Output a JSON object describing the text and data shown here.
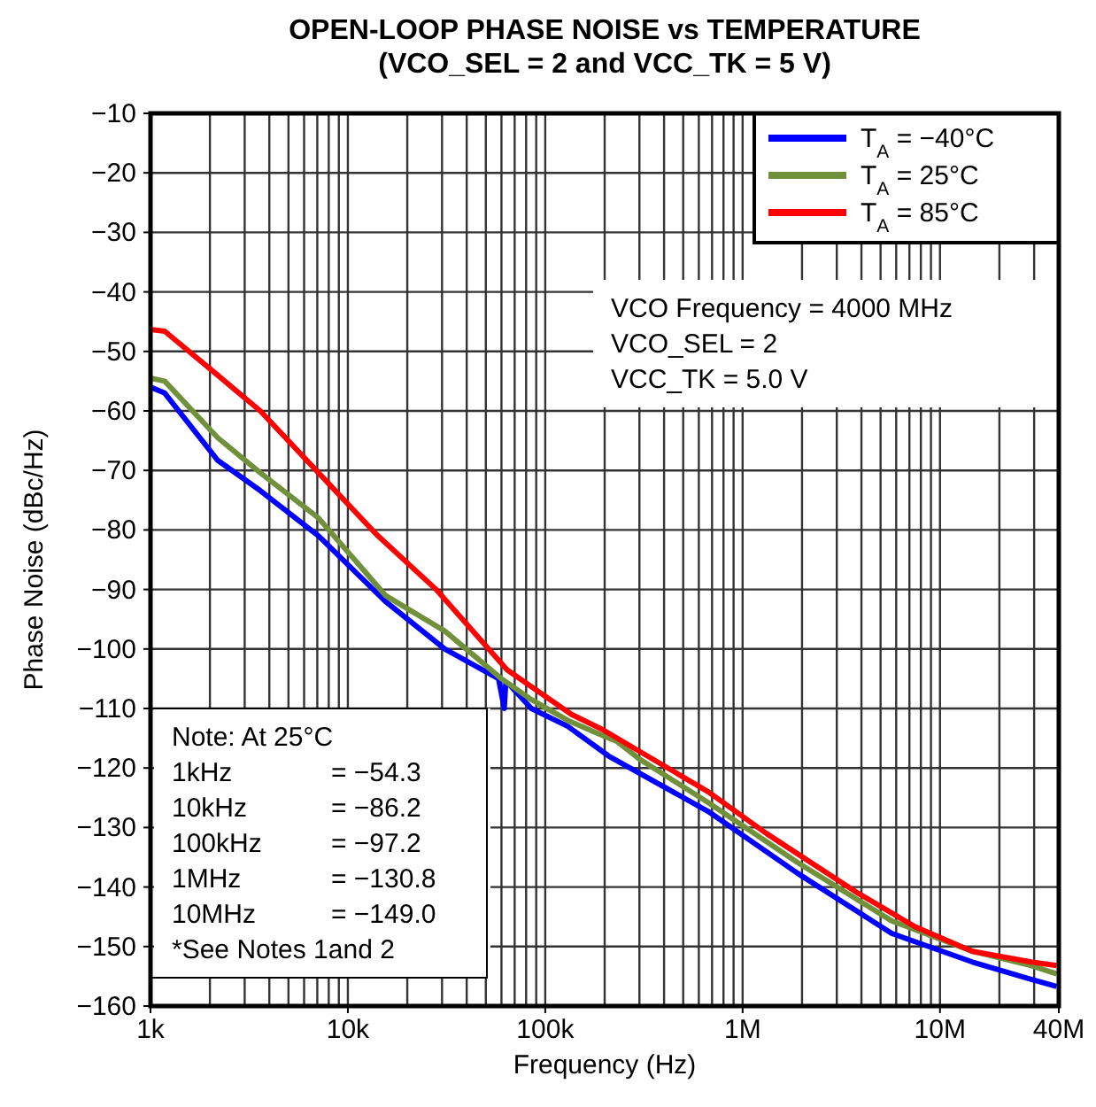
{
  "chart_data": {
    "type": "line",
    "title": "OPEN-LOOP PHASE NOISE vs TEMPERATURE",
    "subtitle": "(VCO_SEL = 2 and VCC_TK = 5 V)",
    "xlabel": "Frequency (Hz)",
    "ylabel": "Phase Noise (dBc/Hz)",
    "log": "x",
    "grid": true,
    "legend": "top right",
    "line_style": "solid",
    "marker": "none",
    "xlim": [
      1000,
      40000000
    ],
    "xticks": [
      {
        "value": 1000,
        "label": "1k"
      },
      {
        "value": 10000,
        "label": "10k"
      },
      {
        "value": 100000,
        "label": "100k"
      },
      {
        "value": 1000000,
        "label": "1M"
      },
      {
        "value": 10000000,
        "label": "10M"
      },
      {
        "value": 40000000,
        "label": "40M"
      }
    ],
    "ylim": [
      -160,
      -10
    ],
    "yticks": [
      -10,
      -20,
      -30,
      -40,
      -50,
      -60,
      -70,
      -80,
      -90,
      -100,
      -110,
      -120,
      -130,
      -140,
      -150,
      -160
    ],
    "series": [
      {
        "name": "T$_{A}$ = −40°C",
        "color": "#0000ff",
        "x": [
          1000,
          1180,
          2190,
          3600,
          7100,
          15500,
          31000,
          58000,
          62000,
          63000,
          66000,
          85000,
          130000,
          210000,
          670000,
          1900000,
          5700000,
          14600000,
          29000000,
          39000000
        ],
        "values": [
          -56,
          -57,
          -68.3,
          -73.4,
          -81,
          -92,
          -100,
          -105,
          -110,
          -106,
          -106,
          -110,
          -113,
          -118,
          -127.3,
          -137.7,
          -147.8,
          -152.6,
          -155.5,
          -156.7
        ]
      },
      {
        "name": "T$_{A}$ = 25°C",
        "color": "#70903c",
        "x": [
          1000,
          1180,
          2190,
          3600,
          7100,
          15500,
          31000,
          60000,
          85000,
          130000,
          194000,
          230000,
          300000,
          670000,
          1900000,
          5700000,
          14600000,
          29000000,
          39000000
        ],
        "values": [
          -54.5,
          -55,
          -64.5,
          -70.4,
          -78,
          -91,
          -97,
          -105,
          -108.5,
          -112,
          -114.5,
          -115.5,
          -118.5,
          -125.8,
          -135.9,
          -145.7,
          -150.8,
          -153.2,
          -154.6
        ]
      },
      {
        "name": "T$_{A}$ = 85°C",
        "color": "#ff0000",
        "x": [
          1000,
          1180,
          2190,
          3600,
          7100,
          14000,
          28000,
          64000,
          136000,
          194000,
          670000,
          1320000,
          3700000,
          7400000,
          14600000,
          29000000,
          39000000
        ],
        "values": [
          -46.3,
          -46.6,
          -54,
          -60,
          -70.4,
          -80.8,
          -90,
          -103.5,
          -111,
          -113.5,
          -124,
          -131,
          -140.7,
          -146.6,
          -150.8,
          -152.6,
          -153.2
        ]
      }
    ],
    "annotations": [
      "VCO Frequency = 4000 MHz\nVCO_SEL = 2\nVCC_TK = 5.0 V",
      "Note: At  25°C\n1kHz = −54.3\n10kHz = −86.2\n100kHz = −97.2\n1MHz = −130.8\n10MHz = −149.0\n*See Notes 1and 2"
    ]
  }
}
